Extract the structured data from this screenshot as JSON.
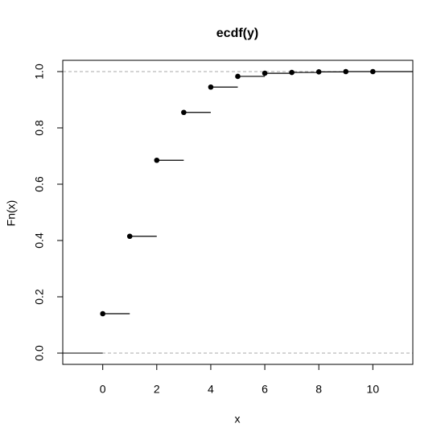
{
  "chart_data": {
    "type": "step",
    "title": "ecdf(y)",
    "x_label": "x",
    "y_label": "Fn(x)",
    "x": [
      0,
      1,
      2,
      3,
      4,
      5,
      6,
      7,
      8,
      9,
      10
    ],
    "values": [
      0.14,
      0.415,
      0.685,
      0.855,
      0.945,
      0.983,
      0.994,
      0.997,
      0.999,
      1.0,
      1.0
    ],
    "color": "#000000",
    "xlim": [
      -1.48,
      11.48
    ],
    "xticks": [
      0,
      2,
      4,
      6,
      8,
      10
    ],
    "ylim": [
      -0.04,
      1.04
    ],
    "yticks": [
      {
        "value": 0,
        "label": "0.0"
      },
      0.2,
      0.4,
      0.6,
      0.8,
      {
        "value": 1,
        "label": "1.0"
      }
    ],
    "reference_lines": [
      0,
      1
    ],
    "reference_color": "#aaaaaa"
  }
}
